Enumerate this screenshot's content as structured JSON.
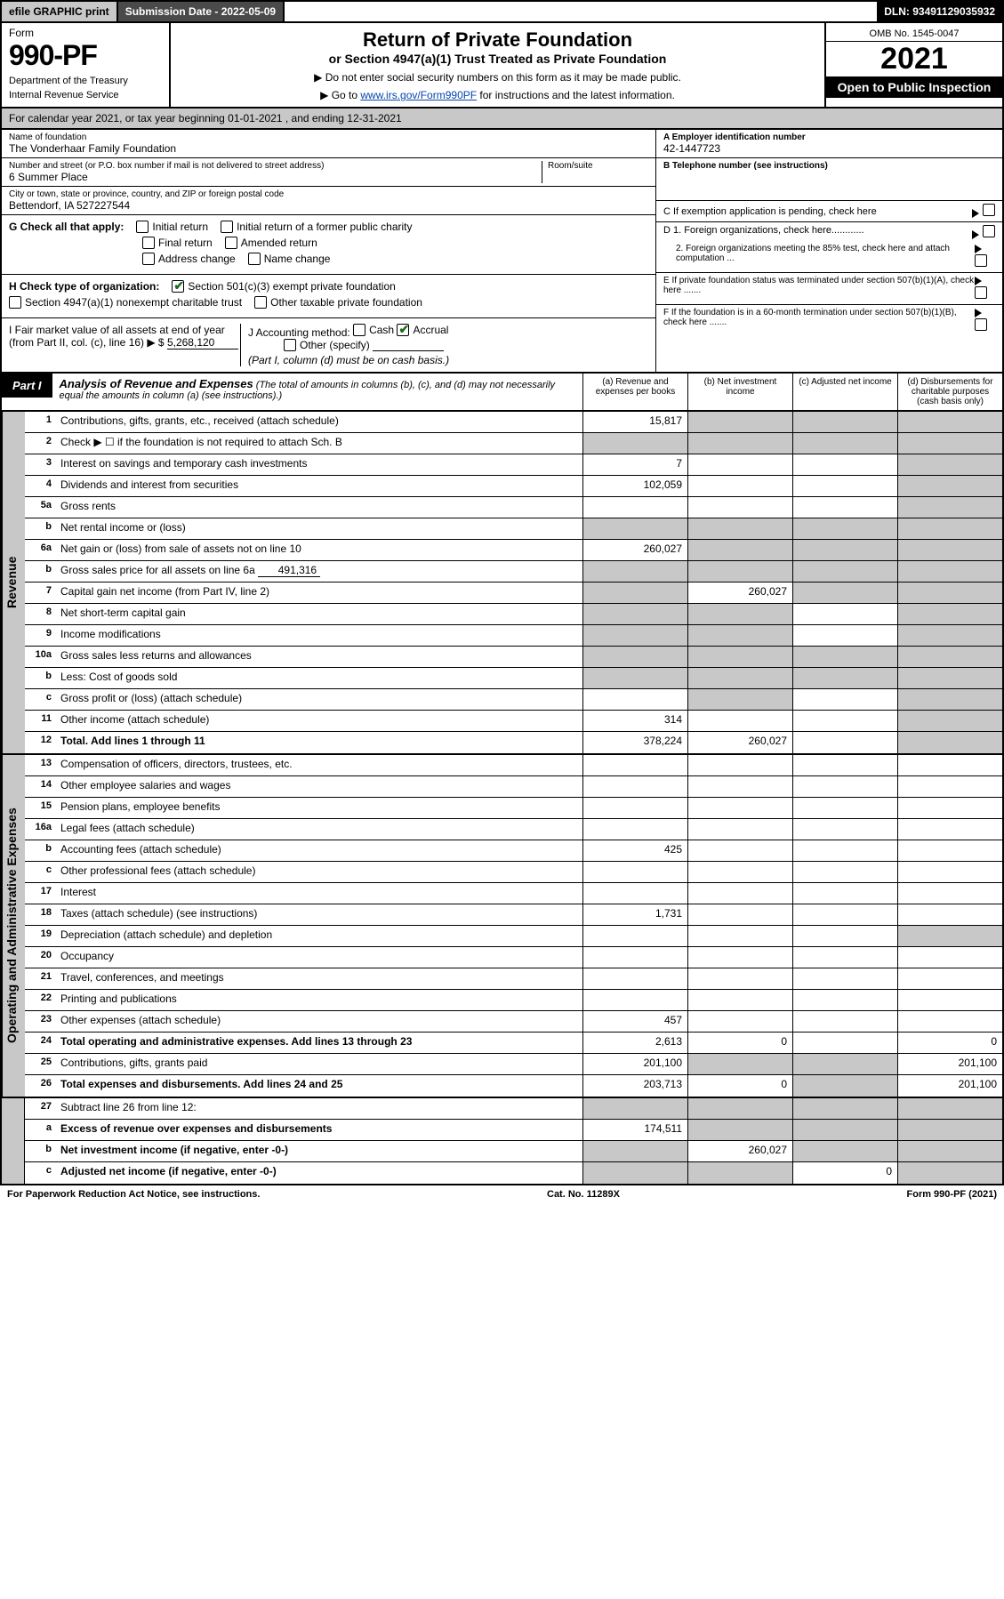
{
  "topbar": {
    "efile": "efile GRAPHIC print",
    "subdate_label": "Submission Date - 2022-05-09",
    "dln": "DLN: 93491129035932"
  },
  "header": {
    "form_word": "Form",
    "form_no": "990-PF",
    "dept": "Department of the Treasury",
    "irs": "Internal Revenue Service",
    "title": "Return of Private Foundation",
    "subtitle": "or Section 4947(a)(1) Trust Treated as Private Foundation",
    "note1": "▶ Do not enter social security numbers on this form as it may be made public.",
    "note2_pre": "▶ Go to ",
    "note2_link": "www.irs.gov/Form990PF",
    "note2_post": " for instructions and the latest information.",
    "omb": "OMB No. 1545-0047",
    "year": "2021",
    "open": "Open to Public Inspection"
  },
  "calyear": {
    "pre": "For calendar year 2021, or tax year beginning ",
    "begin": "01-01-2021",
    "mid": " , and ending ",
    "end": "12-31-2021"
  },
  "info": {
    "name_lbl": "Name of foundation",
    "name_val": "The Vonderhaar Family Foundation",
    "addr_lbl": "Number and street (or P.O. box number if mail is not delivered to street address)",
    "addr_val": "6 Summer Place",
    "room_lbl": "Room/suite",
    "city_lbl": "City or town, state or province, country, and ZIP or foreign postal code",
    "city_val": "Bettendorf, IA  527227544",
    "ein_lbl": "A Employer identification number",
    "ein_val": "42-1447723",
    "tel_lbl": "B Telephone number (see instructions)",
    "c_lbl": "C If exemption application is pending, check here",
    "d1_lbl": "D 1. Foreign organizations, check here............",
    "d2_lbl": "2. Foreign organizations meeting the 85% test, check here and attach computation ...",
    "e_lbl": "E  If private foundation status was terminated under section 507(b)(1)(A), check here .......",
    "f_lbl": "F  If the foundation is in a 60-month termination under section 507(b)(1)(B), check here .......",
    "g_lbl": "G Check all that apply:",
    "g_opts": [
      "Initial return",
      "Initial return of a former public charity",
      "Final return",
      "Amended return",
      "Address change",
      "Name change"
    ],
    "h_lbl": "H Check type of organization:",
    "h_opt1": "Section 501(c)(3) exempt private foundation",
    "h_opt2": "Section 4947(a)(1) nonexempt charitable trust",
    "h_opt3": "Other taxable private foundation",
    "i_lbl": "I Fair market value of all assets at end of year (from Part II, col. (c), line 16) ▶ $",
    "i_val": "5,268,120",
    "j_lbl": "J Accounting method:",
    "j_cash": "Cash",
    "j_accrual": "Accrual",
    "j_other": "Other (specify)",
    "j_note": "(Part I, column (d) must be on cash basis.)"
  },
  "part1": {
    "tag": "Part I",
    "title": "Analysis of Revenue and Expenses",
    "note": "(The total of amounts in columns (b), (c), and (d) may not necessarily equal the amounts in column (a) (see instructions).)",
    "col_a": "(a) Revenue and expenses per books",
    "col_b": "(b) Net investment income",
    "col_c": "(c) Adjusted net income",
    "col_d": "(d) Disbursements for charitable purposes (cash basis only)"
  },
  "side_labels": {
    "rev": "Revenue",
    "exp": "Operating and Administrative Expenses"
  },
  "lines": {
    "l1": {
      "n": "1",
      "t": "Contributions, gifts, grants, etc., received (attach schedule)",
      "a": "15,817"
    },
    "l2": {
      "n": "2",
      "t": "Check ▶ ☐ if the foundation is not required to attach Sch. B"
    },
    "l3": {
      "n": "3",
      "t": "Interest on savings and temporary cash investments",
      "a": "7"
    },
    "l4": {
      "n": "4",
      "t": "Dividends and interest from securities",
      "a": "102,059"
    },
    "l5a": {
      "n": "5a",
      "t": "Gross rents"
    },
    "l5b": {
      "n": "b",
      "t": "Net rental income or (loss)"
    },
    "l6a": {
      "n": "6a",
      "t": "Net gain or (loss) from sale of assets not on line 10",
      "a": "260,027"
    },
    "l6b": {
      "n": "b",
      "t": "Gross sales price for all assets on line 6a",
      "inline": "491,316"
    },
    "l7": {
      "n": "7",
      "t": "Capital gain net income (from Part IV, line 2)",
      "b": "260,027"
    },
    "l8": {
      "n": "8",
      "t": "Net short-term capital gain"
    },
    "l9": {
      "n": "9",
      "t": "Income modifications"
    },
    "l10a": {
      "n": "10a",
      "t": "Gross sales less returns and allowances"
    },
    "l10b": {
      "n": "b",
      "t": "Less: Cost of goods sold"
    },
    "l10c": {
      "n": "c",
      "t": "Gross profit or (loss) (attach schedule)"
    },
    "l11": {
      "n": "11",
      "t": "Other income (attach schedule)",
      "a": "314"
    },
    "l12": {
      "n": "12",
      "t": "Total. Add lines 1 through 11",
      "a": "378,224",
      "b": "260,027",
      "bold": true
    },
    "l13": {
      "n": "13",
      "t": "Compensation of officers, directors, trustees, etc."
    },
    "l14": {
      "n": "14",
      "t": "Other employee salaries and wages"
    },
    "l15": {
      "n": "15",
      "t": "Pension plans, employee benefits"
    },
    "l16a": {
      "n": "16a",
      "t": "Legal fees (attach schedule)"
    },
    "l16b": {
      "n": "b",
      "t": "Accounting fees (attach schedule)",
      "a": "425"
    },
    "l16c": {
      "n": "c",
      "t": "Other professional fees (attach schedule)"
    },
    "l17": {
      "n": "17",
      "t": "Interest"
    },
    "l18": {
      "n": "18",
      "t": "Taxes (attach schedule) (see instructions)",
      "a": "1,731"
    },
    "l19": {
      "n": "19",
      "t": "Depreciation (attach schedule) and depletion"
    },
    "l20": {
      "n": "20",
      "t": "Occupancy"
    },
    "l21": {
      "n": "21",
      "t": "Travel, conferences, and meetings"
    },
    "l22": {
      "n": "22",
      "t": "Printing and publications"
    },
    "l23": {
      "n": "23",
      "t": "Other expenses (attach schedule)",
      "a": "457"
    },
    "l24": {
      "n": "24",
      "t": "Total operating and administrative expenses. Add lines 13 through 23",
      "a": "2,613",
      "b": "0",
      "d": "0",
      "bold": true
    },
    "l25": {
      "n": "25",
      "t": "Contributions, gifts, grants paid",
      "a": "201,100",
      "d": "201,100"
    },
    "l26": {
      "n": "26",
      "t": "Total expenses and disbursements. Add lines 24 and 25",
      "a": "203,713",
      "b": "0",
      "d": "201,100",
      "bold": true
    },
    "l27": {
      "n": "27",
      "t": "Subtract line 26 from line 12:"
    },
    "l27a": {
      "n": "a",
      "t": "Excess of revenue over expenses and disbursements",
      "a": "174,511",
      "bold": true
    },
    "l27b": {
      "n": "b",
      "t": "Net investment income (if negative, enter -0-)",
      "b": "260,027",
      "bold": true
    },
    "l27c": {
      "n": "c",
      "t": "Adjusted net income (if negative, enter -0-)",
      "c": "0",
      "bold": true
    }
  },
  "footer": {
    "left": "For Paperwork Reduction Act Notice, see instructions.",
    "mid": "Cat. No. 11289X",
    "right": "Form 990-PF (2021)"
  },
  "colors": {
    "shade": "#c8c8c8",
    "dark": "#4a4a4a",
    "link": "#0645ad",
    "check": "#1a6b1a"
  }
}
